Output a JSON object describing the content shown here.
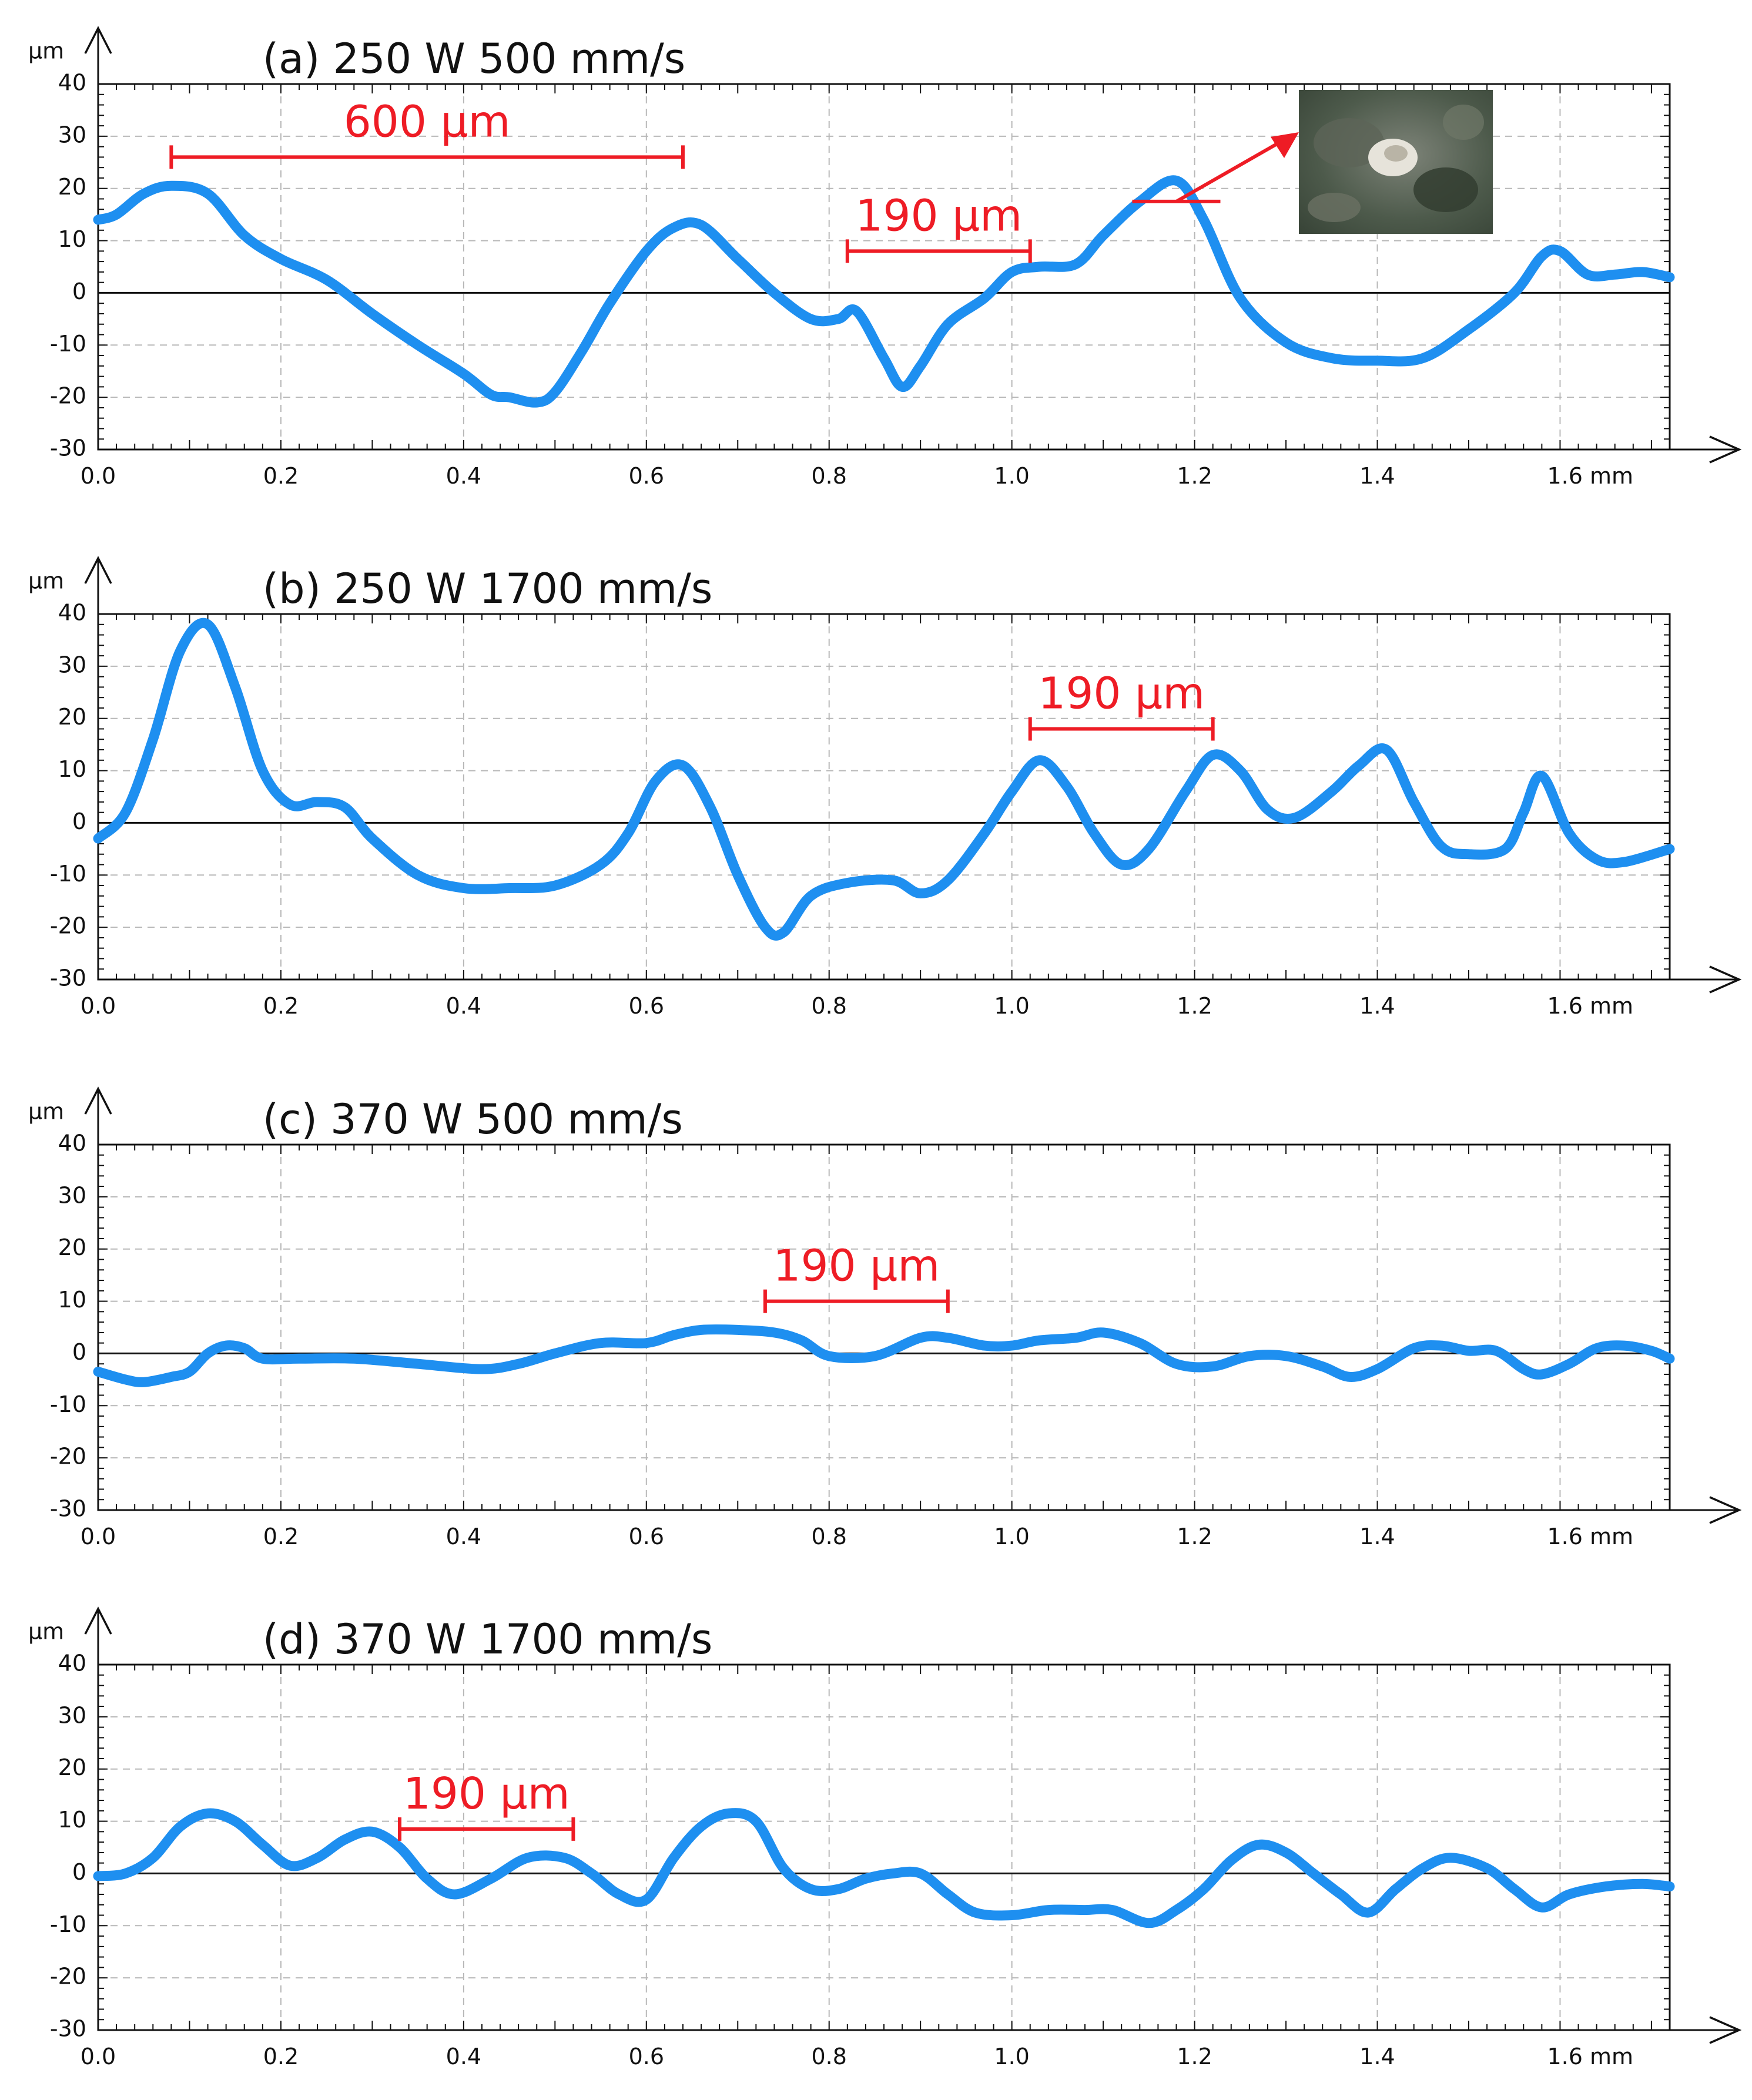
{
  "chart_data": [
    {
      "type": "line",
      "panel": "a",
      "title": "(a) 250 W 500 mm/s",
      "ylabel": "µm",
      "xlabel": "mm",
      "xlim": [
        0,
        1.72
      ],
      "ylim": [
        -30,
        40
      ],
      "xticks": [
        "0.0",
        "0.2",
        "0.4",
        "0.6",
        "0.8",
        "1.0",
        "1.2",
        "1.4",
        "1.6 mm"
      ],
      "yticks": [
        "40",
        "30",
        "20",
        "10",
        "0",
        "-10",
        "-20",
        "-30"
      ],
      "grid": true,
      "series": [
        {
          "name": "profile",
          "color": "#1e8ff0",
          "x": [
            0,
            0.02,
            0.05,
            0.08,
            0.12,
            0.16,
            0.2,
            0.25,
            0.3,
            0.35,
            0.4,
            0.43,
            0.45,
            0.48,
            0.5,
            0.53,
            0.56,
            0.6,
            0.63,
            0.66,
            0.7,
            0.74,
            0.78,
            0.81,
            0.83,
            0.86,
            0.88,
            0.9,
            0.93,
            0.97,
            1.0,
            1.03,
            1.07,
            1.1,
            1.14,
            1.18,
            1.21,
            1.25,
            1.3,
            1.35,
            1.4,
            1.45,
            1.5,
            1.55,
            1.58,
            1.6,
            1.63,
            1.66,
            1.69,
            1.72
          ],
          "y": [
            14,
            15,
            19,
            20.5,
            19,
            11,
            6.5,
            2.5,
            -4,
            -10,
            -15.5,
            -19.5,
            -20,
            -21,
            -19,
            -11,
            -2,
            8,
            12.5,
            13,
            6.5,
            0,
            -5,
            -5,
            -3.5,
            -12.5,
            -18,
            -14,
            -6,
            -1,
            4,
            5,
            5.5,
            11,
            17.5,
            21.5,
            14,
            -1,
            -9.5,
            -12.5,
            -13,
            -12.5,
            -7,
            0,
            7,
            8,
            3.5,
            3.5,
            4,
            3
          ]
        }
      ],
      "annotations": [
        {
          "label": "600 µm",
          "from_x": 0.08,
          "to_x": 0.64,
          "y": 26
        },
        {
          "label": "190 µm",
          "from_x": 0.82,
          "to_x": 1.02,
          "y": 8
        },
        {
          "label": "inset micrograph",
          "anchor_x": 1.18,
          "anchor_y": 17.5
        }
      ]
    },
    {
      "type": "line",
      "panel": "b",
      "title": "(b) 250 W 1700 mm/s",
      "ylabel": "µm",
      "xlabel": "mm",
      "xlim": [
        0,
        1.72
      ],
      "ylim": [
        -30,
        40
      ],
      "xticks": [
        "0.0",
        "0.2",
        "0.4",
        "0.6",
        "0.8",
        "1.0",
        "1.2",
        "1.4",
        "1.6 mm"
      ],
      "yticks": [
        "40",
        "30",
        "20",
        "10",
        "0",
        "-10",
        "-20",
        "-30"
      ],
      "grid": true,
      "series": [
        {
          "name": "profile",
          "color": "#1e8ff0",
          "x": [
            0,
            0.03,
            0.06,
            0.09,
            0.12,
            0.15,
            0.18,
            0.21,
            0.24,
            0.27,
            0.3,
            0.35,
            0.4,
            0.45,
            0.5,
            0.55,
            0.58,
            0.61,
            0.64,
            0.67,
            0.7,
            0.73,
            0.75,
            0.78,
            0.82,
            0.87,
            0.9,
            0.93,
            0.97,
            1.0,
            1.03,
            1.06,
            1.09,
            1.12,
            1.15,
            1.19,
            1.22,
            1.25,
            1.28,
            1.31,
            1.35,
            1.38,
            1.41,
            1.44,
            1.47,
            1.5,
            1.54,
            1.56,
            1.58,
            1.61,
            1.64,
            1.67,
            1.72
          ],
          "y": [
            -3,
            2,
            16,
            33,
            38,
            26,
            10,
            3.5,
            4,
            3,
            -3,
            -10,
            -12.5,
            -12.5,
            -12,
            -8,
            -2,
            8,
            11,
            3,
            -10,
            -20,
            -21,
            -14,
            -11.5,
            -11,
            -13.5,
            -11,
            -2,
            6,
            12,
            7,
            -2,
            -8,
            -5,
            6,
            13,
            10,
            2.5,
            1,
            6,
            11,
            14,
            4,
            -4.5,
            -6,
            -5,
            2,
            9,
            -2,
            -7,
            -7.5,
            -5
          ]
        }
      ],
      "annotations": [
        {
          "label": "190 µm",
          "from_x": 1.02,
          "to_x": 1.22,
          "y": 18
        }
      ]
    },
    {
      "type": "line",
      "panel": "c",
      "title": "(c) 370 W 500 mm/s",
      "ylabel": "µm",
      "xlabel": "mm",
      "xlim": [
        0,
        1.72
      ],
      "ylim": [
        -30,
        40
      ],
      "xticks": [
        "0.0",
        "0.2",
        "0.4",
        "0.6",
        "0.8",
        "1.0",
        "1.2",
        "1.4",
        "1.6 mm"
      ],
      "yticks": [
        "40",
        "30",
        "20",
        "10",
        "0",
        "-10",
        "-20",
        "-30"
      ],
      "grid": true,
      "series": [
        {
          "name": "profile",
          "color": "#1e8ff0",
          "x": [
            0,
            0.03,
            0.05,
            0.08,
            0.1,
            0.12,
            0.14,
            0.16,
            0.18,
            0.22,
            0.28,
            0.35,
            0.42,
            0.46,
            0.5,
            0.55,
            0.6,
            0.63,
            0.66,
            0.7,
            0.74,
            0.77,
            0.8,
            0.85,
            0.9,
            0.93,
            0.97,
            1.0,
            1.03,
            1.07,
            1.1,
            1.14,
            1.18,
            1.22,
            1.26,
            1.3,
            1.34,
            1.37,
            1.4,
            1.44,
            1.47,
            1.5,
            1.53,
            1.56,
            1.58,
            1.61,
            1.64,
            1.67,
            1.7,
            1.72
          ],
          "y": [
            -3.5,
            -5,
            -5.5,
            -4.5,
            -3.5,
            0,
            1.5,
            1,
            -1,
            -1,
            -1,
            -2,
            -3,
            -2,
            0,
            2,
            2,
            3.5,
            4.5,
            4.5,
            4,
            2.5,
            -0.5,
            -0.5,
            3,
            3,
            1.5,
            1.5,
            2.5,
            3,
            4,
            2,
            -2,
            -2.5,
            -0.5,
            -0.5,
            -2.5,
            -4.5,
            -3,
            1,
            1.5,
            0.5,
            0.5,
            -3,
            -4,
            -2,
            1,
            1.5,
            0.5,
            -1
          ]
        }
      ],
      "annotations": [
        {
          "label": "190 µm",
          "from_x": 0.73,
          "to_x": 0.93,
          "y": 10
        }
      ]
    },
    {
      "type": "line",
      "panel": "d",
      "title": "(d) 370 W 1700 mm/s",
      "ylabel": "µm",
      "xlabel": "mm",
      "xlim": [
        0,
        1.72
      ],
      "ylim": [
        -30,
        40
      ],
      "xticks": [
        "0.0",
        "0.2",
        "0.4",
        "0.6",
        "0.8",
        "1.0",
        "1.2",
        "1.4",
        "1.6 mm"
      ],
      "yticks": [
        "40",
        "30",
        "20",
        "10",
        "0",
        "-10",
        "-20",
        "-30"
      ],
      "grid": true,
      "series": [
        {
          "name": "profile",
          "color": "#1e8ff0",
          "x": [
            0,
            0.03,
            0.06,
            0.09,
            0.12,
            0.15,
            0.18,
            0.21,
            0.24,
            0.27,
            0.3,
            0.33,
            0.36,
            0.39,
            0.43,
            0.47,
            0.51,
            0.54,
            0.57,
            0.6,
            0.63,
            0.66,
            0.69,
            0.72,
            0.75,
            0.78,
            0.81,
            0.84,
            0.87,
            0.9,
            0.93,
            0.96,
            1.0,
            1.04,
            1.08,
            1.11,
            1.15,
            1.18,
            1.21,
            1.24,
            1.27,
            1.3,
            1.33,
            1.36,
            1.39,
            1.42,
            1.45,
            1.48,
            1.52,
            1.55,
            1.58,
            1.61,
            1.65,
            1.69,
            1.72
          ],
          "y": [
            -0.5,
            0,
            3,
            9,
            11.5,
            10,
            5.5,
            1.5,
            3,
            6.5,
            8,
            5,
            -1,
            -4,
            -1,
            3,
            3,
            0,
            -4,
            -5,
            3,
            9,
            11.5,
            10,
            1,
            -3,
            -3,
            -1,
            0,
            0,
            -4,
            -7.5,
            -8,
            -7,
            -7,
            -7,
            -9.5,
            -7,
            -3,
            2.5,
            5.5,
            4,
            0,
            -4,
            -7.5,
            -3,
            1,
            3,
            1,
            -3,
            -6.5,
            -4,
            -2.5,
            -2,
            -2.5
          ]
        }
      ],
      "annotations": [
        {
          "label": "190 µm",
          "from_x": 0.33,
          "to_x": 0.52,
          "y": 8.5
        }
      ]
    }
  ]
}
